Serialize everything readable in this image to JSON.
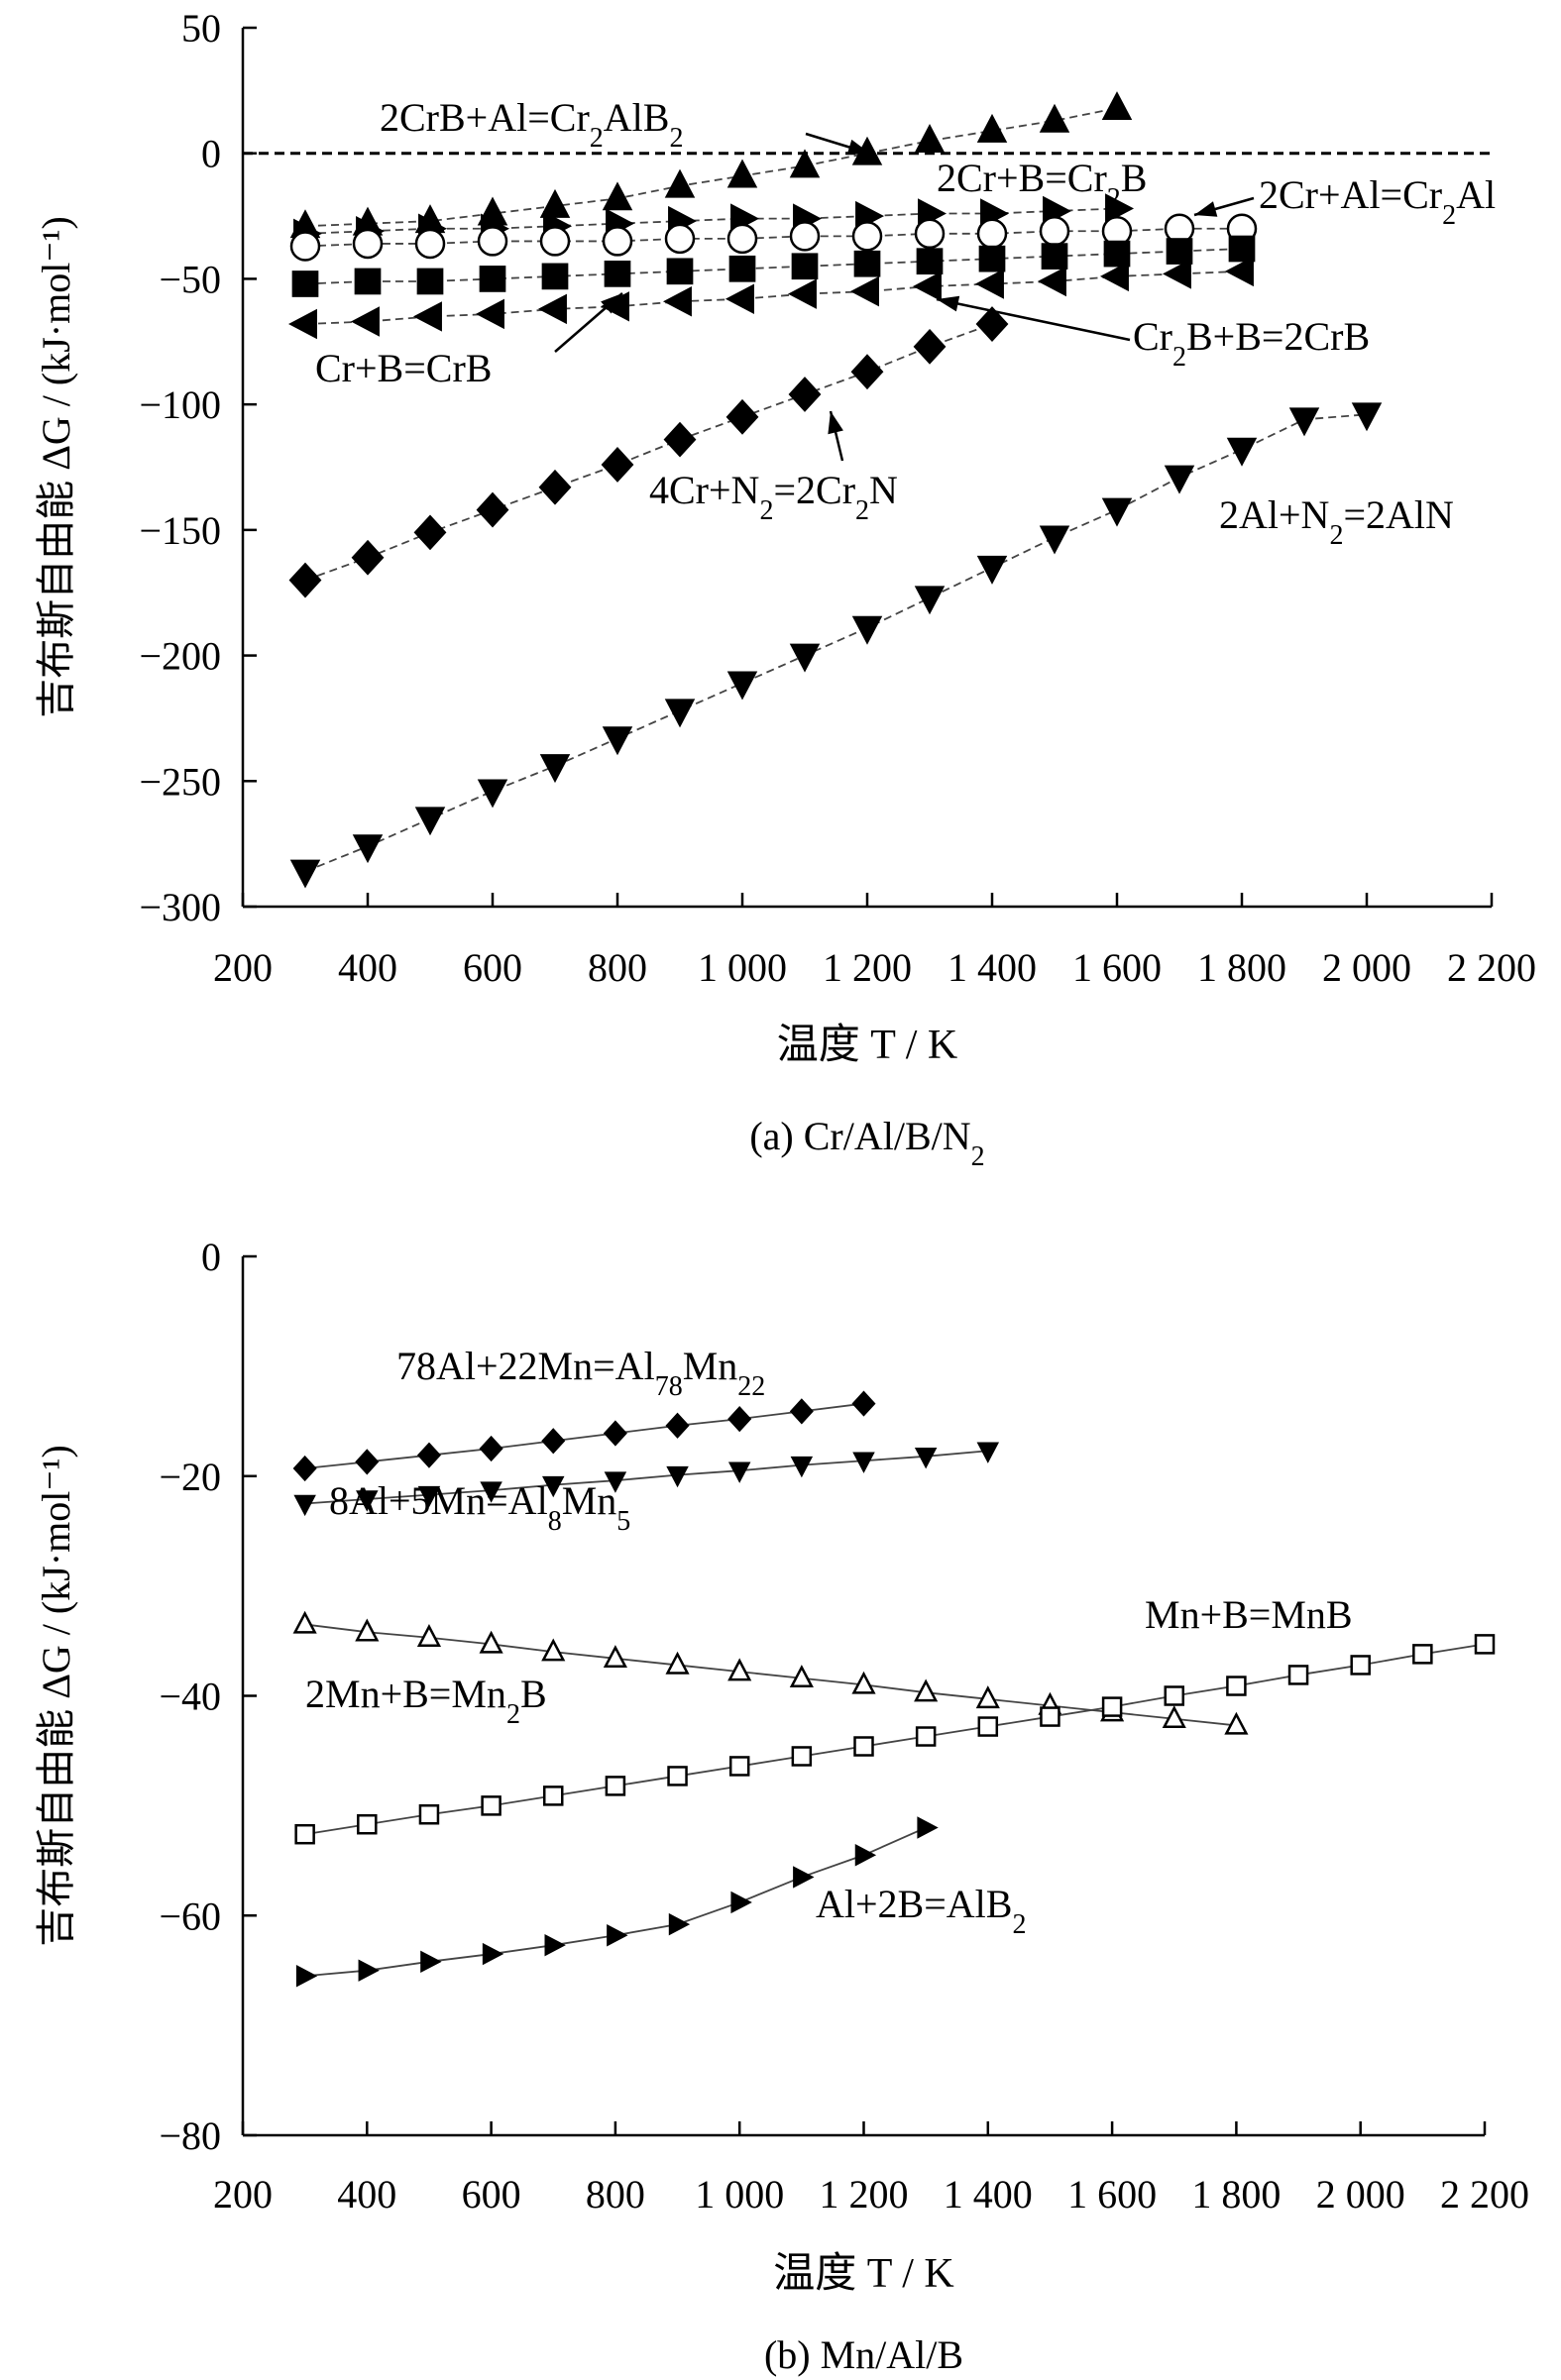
{
  "chart_data": [
    {
      "type": "scatter",
      "caption": "(a) Cr/Al/B/N",
      "caption_sub": "2",
      "xlabel": "温度 T / K",
      "ylabel": "吉布斯自由能 ΔG / (kJ·mol⁻¹)",
      "xlim": [
        200,
        2200
      ],
      "ylim": [
        -300,
        50
      ],
      "xticks": [
        200,
        400,
        600,
        800,
        1000,
        1200,
        1400,
        1600,
        1800,
        2000,
        2200
      ],
      "xtick_labels": [
        "200",
        "400",
        "600",
        "800",
        "1 000",
        "1 200",
        "1 400",
        "1 600",
        "1 800",
        "2 000",
        "2 200"
      ],
      "yticks": [
        50,
        0,
        -50,
        -100,
        -150,
        -200,
        -250,
        -300
      ],
      "ytick_labels": [
        "50",
        "0",
        "−50",
        "−100",
        "−150",
        "−200",
        "−250",
        "−300"
      ],
      "zero_line": true,
      "series": [
        {
          "name": "2CrB+Al=Cr2AlB2",
          "marker": "triangle-up",
          "fill": "filled",
          "x": [
            300,
            400,
            500,
            600,
            700,
            800,
            900,
            1000,
            1100,
            1200,
            1300,
            1400,
            1500,
            1600
          ],
          "y": [
            -29,
            -28,
            -27,
            -24,
            -21,
            -18,
            -13,
            -9,
            -5,
            0,
            5,
            9,
            13,
            18
          ]
        },
        {
          "name": "2Cr+B=Cr2B",
          "marker": "triangle-right",
          "fill": "filled",
          "x": [
            300,
            400,
            500,
            600,
            700,
            800,
            900,
            1000,
            1100,
            1200,
            1300,
            1400,
            1500,
            1600
          ],
          "y": [
            -32,
            -31,
            -30,
            -30,
            -29,
            -28,
            -27,
            -26,
            -26,
            -25,
            -24,
            -24,
            -23,
            -22
          ]
        },
        {
          "name": "2Cr+Al=Cr2Al",
          "marker": "circle",
          "fill": "open",
          "x": [
            300,
            400,
            500,
            600,
            700,
            800,
            900,
            1000,
            1100,
            1200,
            1300,
            1400,
            1500,
            1600,
            1700,
            1800
          ],
          "y": [
            -37,
            -36,
            -36,
            -35,
            -35,
            -35,
            -34,
            -34,
            -33,
            -33,
            -32,
            -32,
            -31,
            -31,
            -30,
            -30
          ]
        },
        {
          "name": "Cr2B+B=2CrB",
          "marker": "square",
          "fill": "filled",
          "x": [
            300,
            400,
            500,
            600,
            700,
            800,
            900,
            1000,
            1100,
            1200,
            1300,
            1400,
            1500,
            1600,
            1700,
            1800
          ],
          "y": [
            -52,
            -51,
            -51,
            -50,
            -49,
            -48,
            -47,
            -46,
            -45,
            -44,
            -43,
            -42,
            -41,
            -40,
            -39,
            -38
          ]
        },
        {
          "name": "Cr+B=CrB",
          "marker": "triangle-left",
          "fill": "filled",
          "x": [
            300,
            400,
            500,
            600,
            700,
            800,
            900,
            1000,
            1100,
            1200,
            1300,
            1400,
            1500,
            1600,
            1700,
            1800
          ],
          "y": [
            -68,
            -67,
            -65,
            -64,
            -62,
            -61,
            -59,
            -58,
            -56,
            -55,
            -53,
            -52,
            -51,
            -49,
            -48,
            -47
          ]
        },
        {
          "name": "4Cr+N2=2Cr2N",
          "marker": "diamond",
          "fill": "filled",
          "x": [
            300,
            400,
            500,
            600,
            700,
            800,
            900,
            1000,
            1100,
            1200,
            1300,
            1400
          ],
          "y": [
            -170,
            -161,
            -151,
            -142,
            -133,
            -124,
            -114,
            -105,
            -96,
            -87,
            -77,
            -68
          ]
        },
        {
          "name": "2Al+N2=2AlN",
          "marker": "triangle-down",
          "fill": "filled",
          "x": [
            300,
            400,
            500,
            600,
            700,
            800,
            900,
            1000,
            1100,
            1200,
            1300,
            1400,
            1500,
            1600,
            1700,
            1800,
            1900,
            2000
          ],
          "y": [
            -286,
            -276,
            -265,
            -254,
            -244,
            -233,
            -222,
            -211,
            -200,
            -189,
            -177,
            -165,
            -153,
            -142,
            -129,
            -118,
            -106,
            -104
          ]
        }
      ],
      "annotations": [
        {
          "text": "2CrB+Al=Cr",
          "sub": "2",
          "text2": "AlB",
          "sub2": "2",
          "series": 0
        },
        {
          "text": "2Cr+B=Cr",
          "sub": "2",
          "text2": "B",
          "sub2": "",
          "series": 1
        },
        {
          "text": "2Cr+Al=Cr",
          "sub": "2",
          "text2": "Al",
          "sub2": "",
          "series": 2
        },
        {
          "text": "Cr",
          "sub": "2",
          "text2": "B+B=2CrB",
          "sub2": "",
          "series": 3
        },
        {
          "text": "Cr+B=CrB",
          "sub": "",
          "text2": "",
          "sub2": "",
          "series": 4
        },
        {
          "text": "4Cr+N",
          "sub": "2",
          "text2": "=2Cr",
          "sub2": "2",
          "text3": "N",
          "series": 5
        },
        {
          "text": "2Al+N",
          "sub": "2",
          "text2": "=2AlN",
          "sub2": "",
          "series": 6
        }
      ]
    },
    {
      "type": "line",
      "caption": "(b) Mn/Al/B",
      "xlabel": "温度 T / K",
      "ylabel": "吉布斯自由能 ΔG / (kJ·mol⁻¹)",
      "xlim": [
        200,
        2200
      ],
      "ylim": [
        -80,
        0
      ],
      "xticks": [
        200,
        400,
        600,
        800,
        1000,
        1200,
        1400,
        1600,
        1800,
        2000,
        2200
      ],
      "xtick_labels": [
        "200",
        "400",
        "600",
        "800",
        "1 000",
        "1 200",
        "1 400",
        "1 600",
        "1 800",
        "2 000",
        "2 200"
      ],
      "yticks": [
        0,
        -20,
        -40,
        -60,
        -80
      ],
      "ytick_labels": [
        "0",
        "−20",
        "−40",
        "−60",
        "−80"
      ],
      "series": [
        {
          "name": "78Al+22Mn=Al78Mn22",
          "marker": "diamond",
          "fill": "filled",
          "x": [
            300,
            400,
            500,
            600,
            700,
            800,
            900,
            1000,
            1100,
            1200
          ],
          "y": [
            -19.3,
            -18.7,
            -18.1,
            -17.5,
            -16.8,
            -16.1,
            -15.4,
            -14.8,
            -14.1,
            -13.4
          ]
        },
        {
          "name": "8Al+5Mn=Al8Mn5",
          "marker": "triangle-down",
          "fill": "filled",
          "x": [
            300,
            400,
            500,
            600,
            700,
            800,
            900,
            1000,
            1100,
            1200,
            1300,
            1400
          ],
          "y": [
            -22.5,
            -22.1,
            -21.7,
            -21.3,
            -20.8,
            -20.4,
            -19.9,
            -19.5,
            -19.0,
            -18.6,
            -18.2,
            -17.7
          ]
        },
        {
          "name": "2Mn+B=Mn2B",
          "marker": "triangle-up",
          "fill": "open",
          "x": [
            300,
            400,
            500,
            600,
            700,
            800,
            900,
            1000,
            1100,
            1200,
            1300,
            1400,
            1500,
            1600,
            1700,
            1800
          ],
          "y": [
            -33.5,
            -34.2,
            -34.7,
            -35.3,
            -36.0,
            -36.6,
            -37.2,
            -37.8,
            -38.4,
            -39.0,
            -39.7,
            -40.3,
            -40.9,
            -41.5,
            -42.1,
            -42.7
          ]
        },
        {
          "name": "Mn+B=MnB",
          "marker": "square",
          "fill": "open",
          "x": [
            300,
            400,
            500,
            600,
            700,
            800,
            900,
            1000,
            1100,
            1200,
            1300,
            1400,
            1500,
            1600,
            1700,
            1800,
            1900,
            2000,
            2100,
            2200
          ],
          "y": [
            -52.6,
            -51.7,
            -50.8,
            -50.0,
            -49.1,
            -48.2,
            -47.3,
            -46.4,
            -45.5,
            -44.6,
            -43.7,
            -42.8,
            -41.9,
            -41.0,
            -40.0,
            -39.1,
            -38.1,
            -37.2,
            -36.2,
            -35.3
          ]
        },
        {
          "name": "Al+2B=AlB2",
          "marker": "triangle-right",
          "fill": "filled",
          "x": [
            300,
            400,
            500,
            600,
            700,
            800,
            900,
            1000,
            1100,
            1200,
            1300
          ],
          "y": [
            -65.5,
            -65.0,
            -64.2,
            -63.5,
            -62.7,
            -61.8,
            -60.8,
            -58.8,
            -56.5,
            -54.5,
            -52.0
          ]
        }
      ],
      "annotations": [
        {
          "text": "78Al+22Mn=Al",
          "sub": "78",
          "text2": "Mn",
          "sub2": "22",
          "series": 0
        },
        {
          "text": "8Al+5Mn=Al",
          "sub": "8",
          "text2": "Mn",
          "sub2": "5",
          "series": 1
        },
        {
          "text": "2Mn+B=Mn",
          "sub": "2",
          "text2": "B",
          "sub2": "",
          "series": 2
        },
        {
          "text": "Mn+B=MnB",
          "sub": "",
          "text2": "",
          "sub2": "",
          "series": 3
        },
        {
          "text": "Al+2B=AlB",
          "sub": "2",
          "text2": "",
          "sub2": "",
          "series": 4
        }
      ]
    }
  ]
}
